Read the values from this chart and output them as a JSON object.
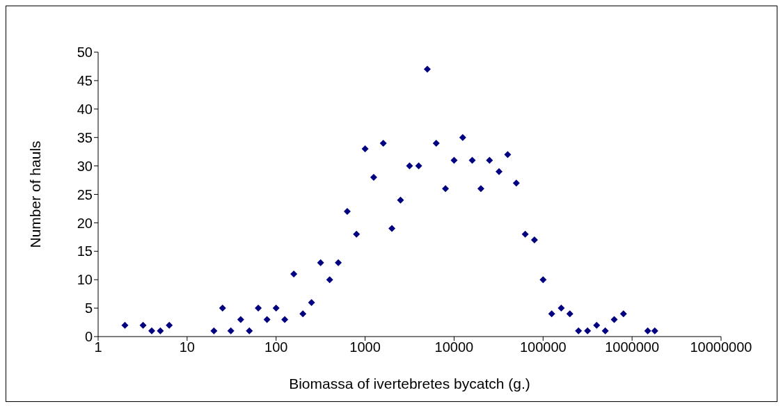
{
  "chart_data": {
    "type": "scatter",
    "xlabel": "Biomassa of ivertebretes bycatch (g.)",
    "ylabel": "Number of hauls",
    "log": "x",
    "xlim": [
      1,
      10000000
    ],
    "xticks": [
      1,
      10,
      100,
      1000,
      10000,
      100000,
      1000000,
      10000000
    ],
    "ylim": [
      0,
      50
    ],
    "yticks": [
      0,
      5,
      10,
      15,
      20,
      25,
      30,
      35,
      40,
      45,
      50
    ],
    "grid": false,
    "legend": false,
    "marker": "diamond",
    "series": [
      {
        "color": "#000080",
        "x": [
          2,
          3.2,
          4,
          5,
          6.3,
          20,
          25,
          31,
          40,
          50,
          63,
          79,
          100,
          125,
          158,
          200,
          250,
          316,
          400,
          500,
          630,
          800,
          1000,
          1250,
          1600,
          2000,
          2500,
          3160,
          4000,
          5000,
          6300,
          8000,
          10000,
          12500,
          16000,
          20000,
          25000,
          32000,
          40000,
          50000,
          63000,
          80000,
          100000,
          125000,
          160000,
          200000,
          250000,
          316000,
          400000,
          500000,
          630000,
          800000,
          1500000,
          1800000
        ],
        "values": [
          2,
          2,
          1,
          1,
          2,
          1,
          5,
          1,
          3,
          1,
          5,
          3,
          5,
          3,
          11,
          4,
          6,
          13,
          10,
          13,
          22,
          18,
          33,
          28,
          34,
          19,
          24,
          30,
          30,
          47,
          34,
          26,
          31,
          35,
          31,
          26,
          31,
          29,
          32,
          27,
          18,
          17,
          10,
          4,
          5,
          4,
          1,
          1,
          2,
          1,
          3,
          4,
          1,
          1
        ]
      }
    ]
  }
}
